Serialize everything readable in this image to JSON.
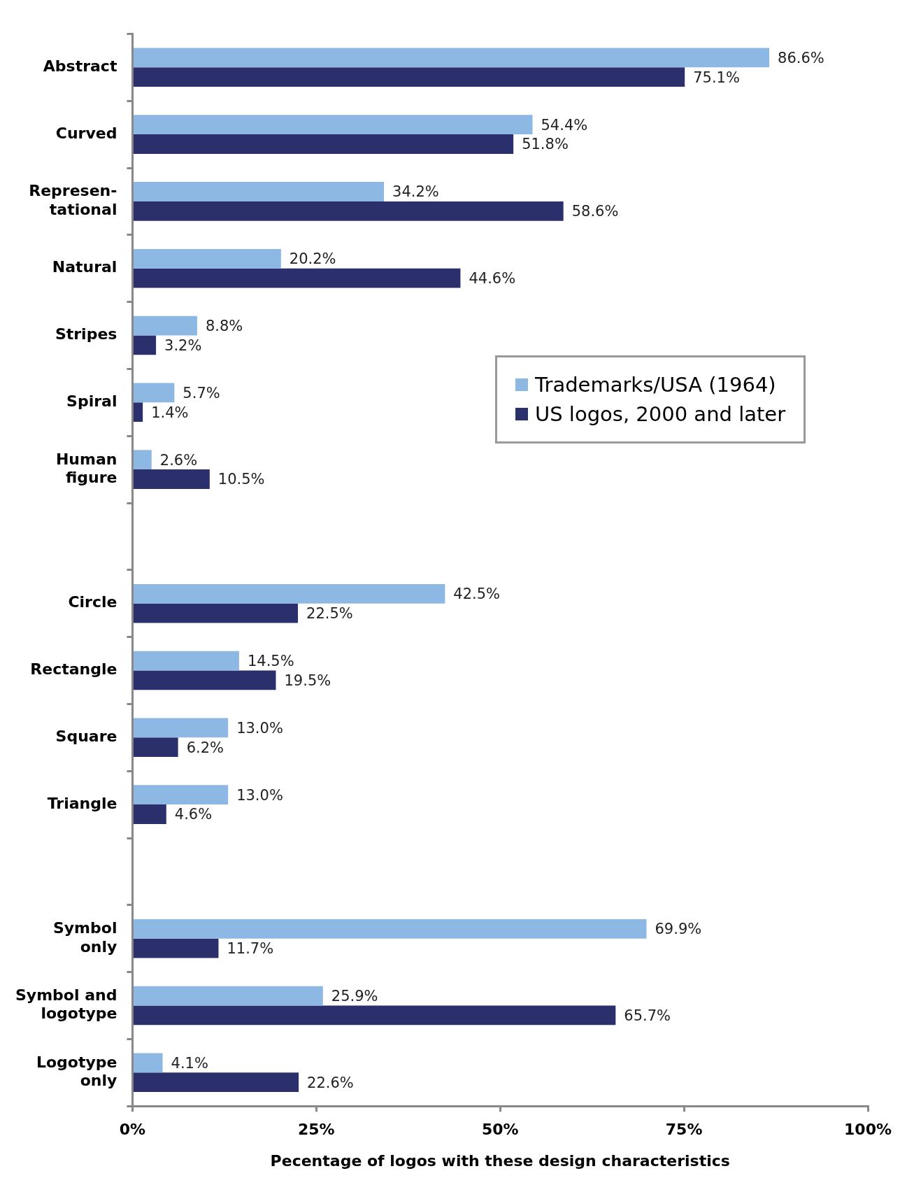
{
  "chart_data": {
    "type": "bar",
    "orientation": "horizontal",
    "categories": [
      "Abstract",
      "Curved",
      "Represen-\ntational",
      "Natural",
      "Stripes",
      "Spiral",
      "Human\nfigure",
      null,
      "Circle",
      "Rectangle",
      "Square",
      "Triangle",
      null,
      "Symbol\nonly",
      "Symbol and\nlogotype",
      "Logotype\nonly"
    ],
    "series": [
      {
        "name": "Trademarks/USA (1964)",
        "color": "#8db8e3",
        "values": [
          86.6,
          54.4,
          34.2,
          20.2,
          8.8,
          5.7,
          2.6,
          null,
          42.5,
          14.5,
          13.0,
          13.0,
          null,
          69.9,
          25.9,
          4.1
        ],
        "value_labels": [
          "86.6%",
          "54.4%",
          "34.2%",
          "20.2%",
          "8.8%",
          "5.7%",
          "2.6%",
          null,
          "42.5%",
          "14.5%",
          "13.0%",
          "13.0%",
          null,
          "69.9%",
          "25.9%",
          "4.1%"
        ]
      },
      {
        "name": "US logos, 2000 and later",
        "color": "#2b2f6b",
        "values": [
          75.1,
          51.8,
          58.6,
          44.6,
          3.2,
          1.4,
          10.5,
          null,
          22.5,
          19.5,
          6.2,
          4.6,
          null,
          11.7,
          65.7,
          22.6
        ],
        "value_labels": [
          "75.1%",
          "51.8%",
          "58.6%",
          "44.6%",
          "3.2%",
          "1.4%",
          "10.5%",
          null,
          "22.5%",
          "19.5%",
          "6.2%",
          "4.6%",
          null,
          "11.7%",
          "65.7%",
          "22.6%"
        ]
      }
    ],
    "xlim": [
      0,
      100
    ],
    "xticks": [
      {
        "value": 0,
        "label": "0%"
      },
      {
        "value": 25,
        "label": "25%"
      },
      {
        "value": 50,
        "label": "50%"
      },
      {
        "value": 75,
        "label": "75%"
      },
      {
        "value": 100,
        "label": "100%"
      }
    ],
    "xlabel": "Pecentage of logos with these design characteristics",
    "grid": false,
    "legend": "right"
  }
}
